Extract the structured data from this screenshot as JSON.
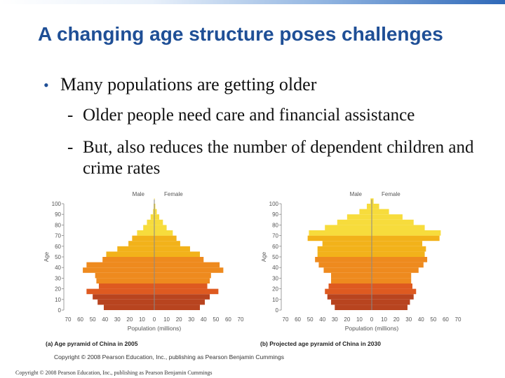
{
  "slide": {
    "title": "A changing age structure poses challenges",
    "bullet": "Many populations are getting older",
    "subbullets": [
      "Older people need care and financial assistance",
      "But, also reduces the number of dependent children and crime rates"
    ],
    "footer_copyright": "Copyright © 2008 Pearson Education, Inc., publishing as Pearson Benjamin Cummings"
  },
  "figure": {
    "copyright": "Copyright © 2008 Pearson Education, Inc., publishing as Pearson Benjamin Cummings",
    "colors": {
      "top": "#f7dc3c",
      "upper": "#f2b21a",
      "middle": "#ee8a1e",
      "lower": "#de5a20",
      "base": "#b8441f",
      "axis": "#888888",
      "label": "#555555"
    }
  },
  "chart_data": [
    {
      "type": "bar",
      "orientation": "horizontal-pyramid",
      "caption_letter": "(a)",
      "caption": "Age pyramid of China in 2005",
      "xlabel": "Population (millions)",
      "ylabel": "Age",
      "left_label": "Male",
      "right_label": "Female",
      "xticks": [
        70,
        60,
        50,
        40,
        30,
        20,
        10,
        0,
        10,
        20,
        30,
        40,
        50,
        60,
        70
      ],
      "yticks": [
        0,
        10,
        20,
        30,
        40,
        50,
        60,
        70,
        80,
        90,
        100
      ],
      "xlim": [
        0,
        70
      ],
      "age_groups": [
        "0-4",
        "5-9",
        "10-14",
        "15-19",
        "20-24",
        "25-29",
        "30-34",
        "35-39",
        "40-44",
        "45-49",
        "50-54",
        "55-59",
        "60-64",
        "65-69",
        "70-74",
        "75-79",
        "80-84",
        "85-89",
        "90-94",
        "95-99",
        "100+"
      ],
      "male": [
        41,
        46,
        50,
        55,
        45,
        47,
        48,
        58,
        55,
        42,
        39,
        30,
        21,
        18,
        14,
        9,
        6,
        3,
        1,
        0.5,
        0.2
      ],
      "female": [
        37,
        41,
        45,
        52,
        43,
        45,
        46,
        56,
        53,
        40,
        37,
        29,
        21,
        18,
        15,
        10,
        7,
        4,
        2,
        0.8,
        0.3
      ]
    },
    {
      "type": "bar",
      "orientation": "horizontal-pyramid",
      "caption_letter": "(b)",
      "caption": "Projected age pyramid of China in 2030",
      "xlabel": "Population (millions)",
      "ylabel": "Age",
      "left_label": "Male",
      "right_label": "Female",
      "xticks": [
        70,
        60,
        50,
        40,
        30,
        20,
        10,
        0,
        10,
        20,
        30,
        40,
        50,
        60,
        70
      ],
      "yticks": [
        0,
        10,
        20,
        30,
        40,
        50,
        60,
        70,
        80,
        90,
        100
      ],
      "xlim": [
        0,
        70
      ],
      "age_groups": [
        "0-4",
        "5-9",
        "10-14",
        "15-19",
        "20-24",
        "25-29",
        "30-34",
        "35-39",
        "40-44",
        "45-49",
        "50-54",
        "55-59",
        "60-64",
        "65-69",
        "70-74",
        "75-79",
        "80-84",
        "85-89",
        "90-94",
        "95-99",
        "100+"
      ],
      "male": [
        30,
        33,
        36,
        38,
        35,
        33,
        33,
        39,
        43,
        46,
        44,
        44,
        40,
        52,
        51,
        38,
        28,
        20,
        10,
        4,
        1
      ],
      "female": [
        29,
        31,
        34,
        36,
        33,
        32,
        32,
        38,
        42,
        45,
        43,
        44,
        41,
        55,
        56,
        43,
        34,
        25,
        14,
        6,
        1.5
      ]
    }
  ]
}
